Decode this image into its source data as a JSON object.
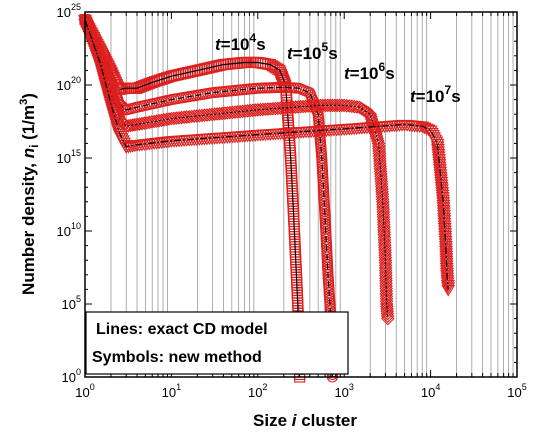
{
  "chart_data": {
    "type": "scatter",
    "xscale": "log",
    "yscale": "log",
    "xlim": [
      1,
      100000
    ],
    "ylim": [
      1,
      1e+25
    ],
    "xlabel": "Size i cluster",
    "ylabel": "Number density, n_i (1/m^3)",
    "xticks": [
      {
        "base": "10",
        "exp": "0",
        "value": 1
      },
      {
        "base": "10",
        "exp": "1",
        "value": 10
      },
      {
        "base": "10",
        "exp": "2",
        "value": 100
      },
      {
        "base": "10",
        "exp": "3",
        "value": 1000
      },
      {
        "base": "10",
        "exp": "4",
        "value": 10000
      },
      {
        "base": "10",
        "exp": "5",
        "value": 100000
      }
    ],
    "yticks": [
      {
        "base": "10",
        "exp": "0",
        "value": 1
      },
      {
        "base": "10",
        "exp": "5",
        "value": 100000.0
      },
      {
        "base": "10",
        "exp": "10",
        "value": 10000000000.0
      },
      {
        "base": "10",
        "exp": "15",
        "value": 1000000000000000.0
      },
      {
        "base": "10",
        "exp": "20",
        "value": 1e+20
      },
      {
        "base": "10",
        "exp": "25",
        "value": 1e+25
      }
    ],
    "grid": "x-minor",
    "series": [
      {
        "name": "t=10^4 s",
        "marker": "square",
        "label": {
          "t": "t",
          "eq": "=10",
          "exp": "4",
          "unit": "s"
        },
        "x": [
          1,
          1.5,
          2,
          2.5,
          3,
          4,
          6,
          10,
          20,
          40,
          70,
          100,
          140,
          180,
          210,
          240,
          260,
          280,
          295,
          305
        ],
        "y": [
          3e+24,
          3e+22,
          1e+21,
          5e+19,
          6e+19,
          6e+19,
          1.5e+20,
          4e+20,
          1e+21,
          2.5e+21,
          3.5e+21,
          3.5e+21,
          2.5e+21,
          1e+21,
          1e+20,
          1000000000000000.0,
          100000000000.0,
          10000000.0,
          10000.0,
          1
        ]
      },
      {
        "name": "t=10^5 s",
        "marker": "circle",
        "label": {
          "t": "t",
          "eq": "=10",
          "exp": "5",
          "unit": "s"
        },
        "x": [
          1,
          1.5,
          2,
          2.5,
          3,
          4,
          10,
          30,
          100,
          200,
          300,
          400,
          500,
          550,
          600,
          650,
          700,
          730
        ],
        "y": [
          3e+24,
          1e+22,
          2e+20,
          5e+18,
          2e+18,
          3e+18,
          1e+19,
          3e+19,
          6e+19,
          7e+19,
          6e+19,
          3e+19,
          1e+18,
          1000000000000000.0,
          100000000000.0,
          10000000.0,
          10000.0,
          1
        ]
      },
      {
        "name": "t=10^6 s",
        "marker": "diamond",
        "label": {
          "t": "t",
          "eq": "=10",
          "exp": "6",
          "unit": "s"
        },
        "x": [
          1,
          1.5,
          2,
          2.5,
          3,
          4,
          10,
          100,
          500,
          1000,
          1500,
          2000,
          2500,
          2800,
          3000,
          3100,
          3200
        ],
        "y": [
          3e+24,
          5e+21,
          3e+19,
          5e+17,
          1.5e+17,
          2e+17,
          5e+17,
          2e+18,
          4e+18,
          4e+18,
          3e+18,
          1e+18,
          1e+16,
          1000000000000.0,
          100000000.0,
          100000.0,
          10000.0
        ]
      },
      {
        "name": "t=10^7 s",
        "marker": "triangle-down",
        "label": {
          "t": "t",
          "eq": "=10",
          "exp": "7",
          "unit": "s"
        },
        "x": [
          1,
          1.5,
          2,
          2.5,
          3,
          4,
          10,
          100,
          1000,
          5000,
          8000,
          10000,
          12000,
          14000,
          15000,
          15500,
          16000
        ],
        "y": [
          3e+24,
          3e+21,
          5e+18,
          5e+16,
          6000000000000000.0,
          8000000000000000.0,
          1.5e+16,
          4e+16,
          1e+17,
          2e+17,
          1.5e+17,
          8e+16,
          1e+16,
          1000000000000.0,
          1000000000.0,
          10000000.0,
          1000000.0
        ]
      }
    ],
    "legend": {
      "position": "bottom-left",
      "lines": "Lines: exact CD model",
      "symbols": "Symbols: new method"
    }
  }
}
